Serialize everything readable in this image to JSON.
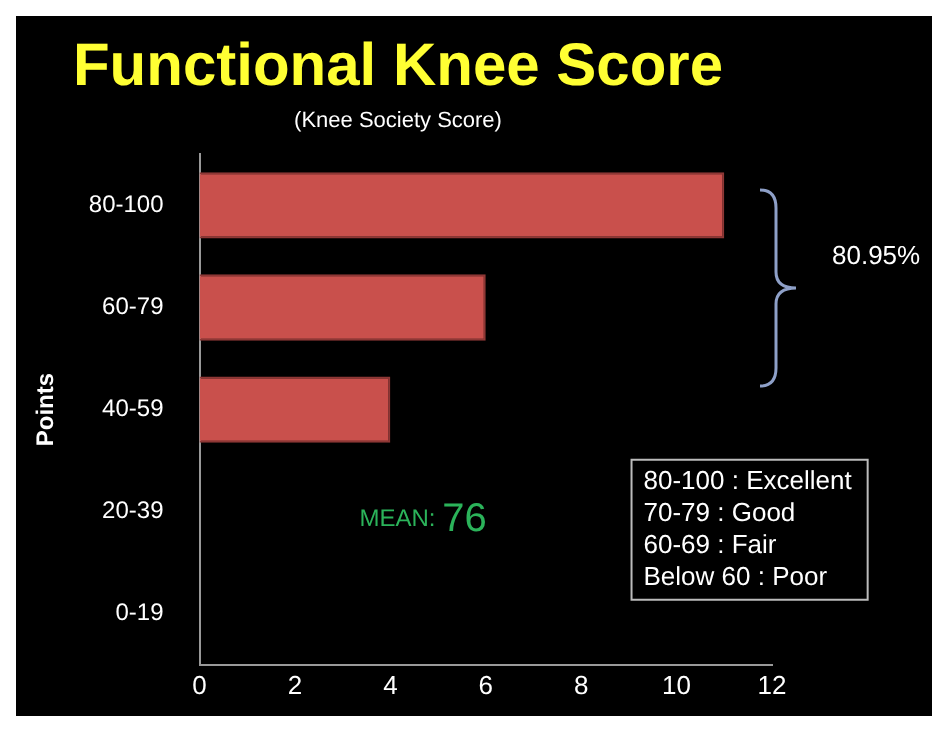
{
  "chart_data": {
    "type": "bar",
    "orientation": "horizontal",
    "title": "Functional Knee Score",
    "subtitle": "(Knee Society Score)",
    "ylabel": "Points",
    "categories": [
      "80-100",
      "60-79",
      "40-59",
      "20-39",
      "0-19"
    ],
    "values": [
      11,
      6,
      4,
      0,
      0
    ],
    "color": "#c9504c",
    "xlim": [
      0,
      12
    ],
    "xticks": [
      0,
      2,
      4,
      6,
      8,
      10,
      12
    ],
    "grid": false,
    "legend": false,
    "annotations": [
      "80.95%",
      "MEAN: 76",
      "80-100 : Excellent",
      "70-79 : Good",
      "60-69 : Fair",
      "Below 60 : Poor"
    ]
  }
}
